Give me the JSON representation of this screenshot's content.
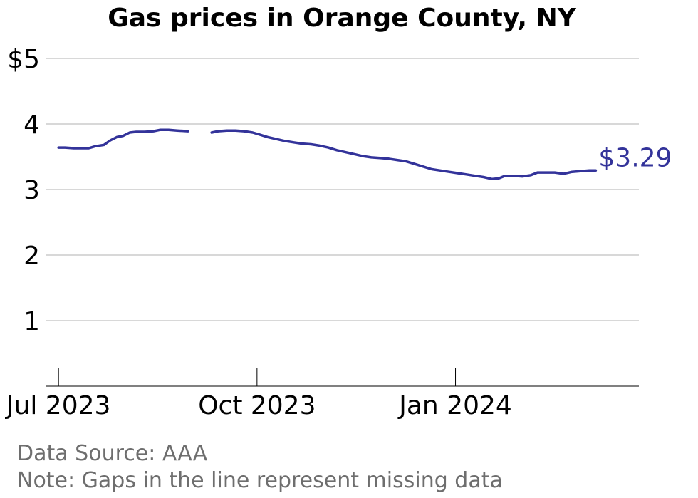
{
  "chart_data": {
    "type": "line",
    "title": "Gas prices in Orange County, NY",
    "xlabel": "",
    "ylabel": "",
    "ylim": [
      0,
      5
    ],
    "xlim": [
      "2023-06-25",
      "2024-03-26"
    ],
    "y_ticks": [
      {
        "value": 1,
        "label": "1"
      },
      {
        "value": 2,
        "label": "2"
      },
      {
        "value": 3,
        "label": "3"
      },
      {
        "value": 4,
        "label": "4"
      },
      {
        "value": 5,
        "label": "$5"
      }
    ],
    "x_ticks": [
      {
        "value": "2023-07-01",
        "label": "Jul 2023"
      },
      {
        "value": "2023-10-01",
        "label": "Oct 2023"
      },
      {
        "value": "2024-01-01",
        "label": "Jan 2024"
      }
    ],
    "grid": true,
    "line_color": "#33339a",
    "end_label": "$3.29",
    "series": [
      {
        "segments": [
          [
            [
              "2023-07-01",
              3.64
            ],
            [
              "2023-07-04",
              3.64
            ],
            [
              "2023-07-08",
              3.63
            ],
            [
              "2023-07-12",
              3.63
            ],
            [
              "2023-07-15",
              3.63
            ],
            [
              "2023-07-18",
              3.66
            ],
            [
              "2023-07-22",
              3.68
            ],
            [
              "2023-07-25",
              3.75
            ],
            [
              "2023-07-28",
              3.8
            ],
            [
              "2023-07-31",
              3.82
            ],
            [
              "2023-08-03",
              3.87
            ],
            [
              "2023-08-06",
              3.88
            ],
            [
              "2023-08-10",
              3.88
            ],
            [
              "2023-08-14",
              3.89
            ],
            [
              "2023-08-17",
              3.91
            ],
            [
              "2023-08-21",
              3.91
            ],
            [
              "2023-08-25",
              3.9
            ],
            [
              "2023-08-30",
              3.89
            ]
          ],
          [
            [
              "2023-09-10",
              3.87
            ],
            [
              "2023-09-13",
              3.89
            ],
            [
              "2023-09-17",
              3.9
            ],
            [
              "2023-09-21",
              3.9
            ],
            [
              "2023-09-25",
              3.89
            ],
            [
              "2023-09-29",
              3.87
            ],
            [
              "2023-10-02",
              3.84
            ],
            [
              "2023-10-06",
              3.8
            ],
            [
              "2023-10-10",
              3.77
            ],
            [
              "2023-10-14",
              3.74
            ],
            [
              "2023-10-18",
              3.72
            ],
            [
              "2023-10-22",
              3.7
            ],
            [
              "2023-10-26",
              3.69
            ],
            [
              "2023-10-30",
              3.67
            ],
            [
              "2023-11-03",
              3.64
            ],
            [
              "2023-11-07",
              3.6
            ],
            [
              "2023-11-11",
              3.57
            ],
            [
              "2023-11-15",
              3.54
            ],
            [
              "2023-11-19",
              3.51
            ],
            [
              "2023-11-23",
              3.49
            ],
            [
              "2023-11-27",
              3.48
            ],
            [
              "2023-12-01",
              3.47
            ],
            [
              "2023-12-05",
              3.45
            ],
            [
              "2023-12-09",
              3.43
            ],
            [
              "2023-12-13",
              3.39
            ],
            [
              "2023-12-17",
              3.35
            ],
            [
              "2023-12-21",
              3.31
            ],
            [
              "2023-12-25",
              3.29
            ],
            [
              "2023-12-29",
              3.27
            ],
            [
              "2024-01-02",
              3.25
            ],
            [
              "2024-01-06",
              3.23
            ],
            [
              "2024-01-10",
              3.21
            ],
            [
              "2024-01-14",
              3.19
            ],
            [
              "2024-01-18",
              3.16
            ],
            [
              "2024-01-21",
              3.17
            ],
            [
              "2024-01-24",
              3.21
            ],
            [
              "2024-01-28",
              3.21
            ],
            [
              "2024-02-01",
              3.2
            ],
            [
              "2024-02-05",
              3.22
            ],
            [
              "2024-02-08",
              3.26
            ],
            [
              "2024-02-12",
              3.26
            ],
            [
              "2024-02-16",
              3.26
            ],
            [
              "2024-02-20",
              3.24
            ],
            [
              "2024-02-24",
              3.27
            ],
            [
              "2024-02-28",
              3.28
            ],
            [
              "2024-03-03",
              3.29
            ],
            [
              "2024-03-06",
              3.29
            ]
          ]
        ]
      }
    ],
    "notes": [
      "Data Source: AAA",
      "Note: Gaps in the line represent missing data"
    ]
  }
}
